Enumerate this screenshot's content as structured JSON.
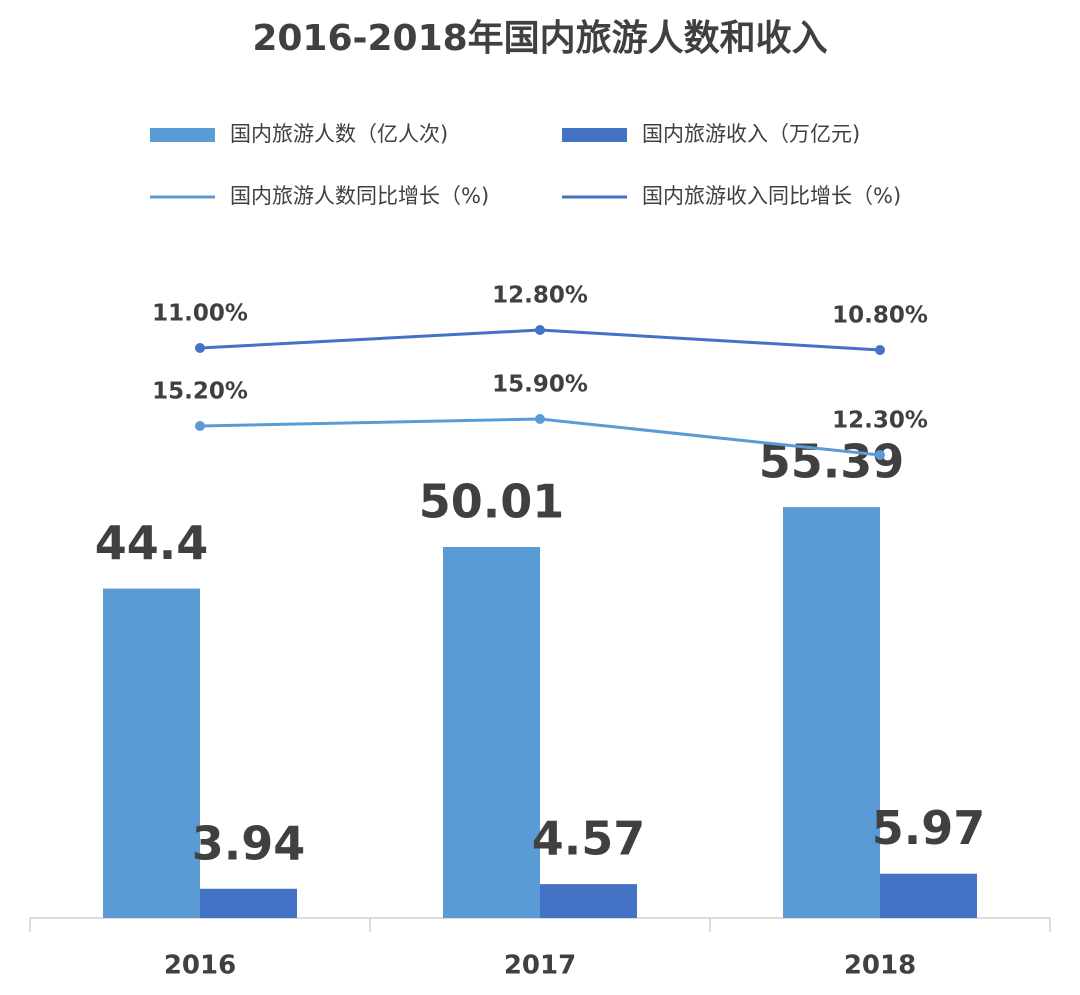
{
  "chart_data": {
    "type": "combo",
    "title": "2016-2018年国内旅游人数和收入",
    "categories": [
      "2016",
      "2017",
      "2018"
    ],
    "ylim": [
      0,
      86
    ],
    "series": [
      {
        "name": "国内旅游人数（亿人次)",
        "type": "bar",
        "color": "#5b9bd5",
        "values": [
          44.4,
          50.01,
          55.39
        ]
      },
      {
        "name": "国内旅游收入（万亿元)",
        "type": "bar",
        "color": "#4472c4",
        "values": [
          3.94,
          4.57,
          5.97
        ]
      },
      {
        "name": "国内旅游人数同比增长（%)",
        "type": "line",
        "axis": "y2",
        "ylim": [
          -34,
          29.8
        ],
        "color": "#5b9bd5",
        "values": [
          15.2,
          15.9,
          12.3
        ],
        "value_labels": [
          "15.20%",
          "15.90%",
          "12.30%"
        ]
      },
      {
        "name": "国内旅游收入同比增长（%)",
        "type": "line",
        "axis": "y2",
        "ylim": [
          -46,
          17.8
        ],
        "color": "#4472c4",
        "values": [
          11.0,
          12.8,
          10.8
        ],
        "value_labels": [
          "11.00%",
          "12.80%",
          "10.80%"
        ]
      }
    ]
  }
}
